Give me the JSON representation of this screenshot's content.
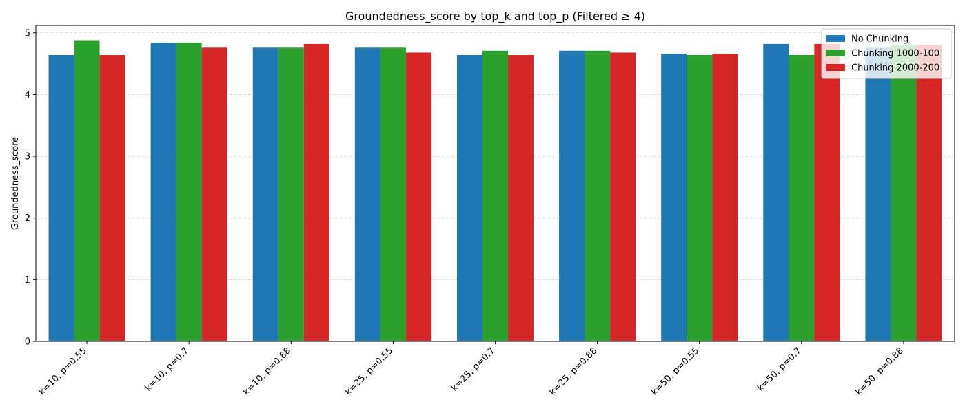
{
  "chart_data": {
    "type": "bar",
    "title": "Groundedness_score by top_k and top_p (Filtered ≥ 4)",
    "xlabel": "",
    "ylabel": "Groundedness_score",
    "ylim": [
      0,
      5.12
    ],
    "yticks": [
      0,
      1,
      2,
      3,
      4,
      5
    ],
    "grid": "y-dashed",
    "legend_position": "top-right",
    "categories": [
      "k=10, p=0.55",
      "k=10, p=0.7",
      "k=10, p=0.88",
      "k=25, p=0.55",
      "k=25, p=0.7",
      "k=25, p=0.88",
      "k=50, p=0.55",
      "k=50, p=0.7",
      "k=50, p=0.88"
    ],
    "series": [
      {
        "name": "No Chunking",
        "color": "#1f77b4",
        "values": [
          4.64,
          4.84,
          4.76,
          4.76,
          4.64,
          4.71,
          4.66,
          4.82,
          4.76
        ]
      },
      {
        "name": "Chunking 1000-100",
        "color": "#2ca02c",
        "values": [
          4.88,
          4.84,
          4.76,
          4.76,
          4.71,
          4.71,
          4.64,
          4.64,
          4.8
        ]
      },
      {
        "name": "Chunking 2000-200",
        "color": "#d62728",
        "values": [
          4.64,
          4.76,
          4.82,
          4.68,
          4.64,
          4.68,
          4.66,
          4.82,
          4.8
        ]
      }
    ]
  }
}
